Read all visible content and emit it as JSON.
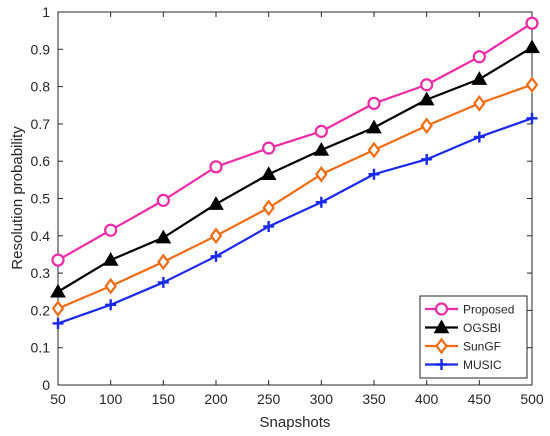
{
  "chart_data": {
    "type": "line",
    "title": "",
    "xlabel": "Snapshots",
    "ylabel": "Resolution probability",
    "x": [
      50,
      100,
      150,
      200,
      250,
      300,
      350,
      400,
      450,
      500
    ],
    "xlim": [
      50,
      500
    ],
    "ylim": [
      0,
      1
    ],
    "xticks": [
      "50",
      "100",
      "150",
      "200",
      "250",
      "300",
      "350",
      "400",
      "450",
      "500"
    ],
    "yticks": [
      "0",
      "0.1",
      "0.2",
      "0.3",
      "0.4",
      "0.5",
      "0.6",
      "0.7",
      "0.8",
      "0.9",
      "1"
    ],
    "grid": false,
    "legend_position": "bottom-right",
    "series": [
      {
        "name": "Proposed",
        "color": "#ee2aa6",
        "marker": "circle",
        "values": [
          0.335,
          0.415,
          0.495,
          0.585,
          0.635,
          0.68,
          0.755,
          0.805,
          0.88,
          0.97
        ]
      },
      {
        "name": "OGSBI",
        "color": "#000000",
        "marker": "triangle",
        "values": [
          0.25,
          0.335,
          0.395,
          0.485,
          0.565,
          0.63,
          0.69,
          0.765,
          0.82,
          0.905
        ]
      },
      {
        "name": "SunGF",
        "color": "#f26a12",
        "marker": "diamond",
        "values": [
          0.205,
          0.265,
          0.33,
          0.4,
          0.475,
          0.565,
          0.63,
          0.695,
          0.755,
          0.805
        ]
      },
      {
        "name": "MUSIC",
        "color": "#1a29ef",
        "marker": "plus",
        "values": [
          0.165,
          0.215,
          0.275,
          0.345,
          0.425,
          0.49,
          0.565,
          0.605,
          0.665,
          0.715
        ]
      }
    ]
  }
}
